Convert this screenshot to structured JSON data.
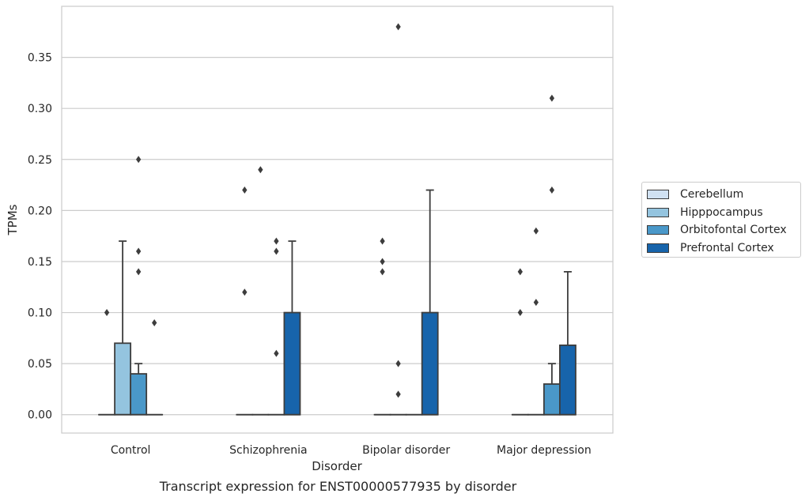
{
  "caption": "Transcript expression for ENST00000577935 by disorder",
  "chart_data": {
    "type": "box",
    "xlabel": "Disorder",
    "ylabel": "TPMs",
    "ylim": [
      -0.018,
      0.4
    ],
    "yticks": [
      "0.00",
      "0.05",
      "0.10",
      "0.15",
      "0.20",
      "0.25",
      "0.30",
      "0.35"
    ],
    "ytick_values": [
      0,
      0.05,
      0.1,
      0.15,
      0.2,
      0.25,
      0.3,
      0.35
    ],
    "grid": "horizontal",
    "legend_position": "right",
    "categories": [
      "Control",
      "Schizophrenia",
      "Bipolar disorder",
      "Major depression"
    ],
    "series": [
      {
        "name": "Cerebellum",
        "color": "#d0e1f2",
        "boxes": [
          {
            "q1": 0,
            "median": 0,
            "q3": 0,
            "whisker_low": 0,
            "whisker_high": 0,
            "outliers": [
              0.1
            ]
          },
          {
            "q1": 0,
            "median": 0,
            "q3": 0,
            "whisker_low": 0,
            "whisker_high": 0,
            "outliers": [
              0.12,
              0.22
            ]
          },
          {
            "q1": 0,
            "median": 0,
            "q3": 0,
            "whisker_low": 0,
            "whisker_high": 0,
            "outliers": [
              0.14,
              0.15,
              0.17
            ]
          },
          {
            "q1": 0,
            "median": 0,
            "q3": 0,
            "whisker_low": 0,
            "whisker_high": 0,
            "outliers": [
              0.1,
              0.14
            ]
          }
        ]
      },
      {
        "name": "Hipppocampus",
        "color": "#94c4df",
        "boxes": [
          {
            "q1": 0,
            "median": 0,
            "q3": 0.07,
            "whisker_low": 0,
            "whisker_high": 0.17,
            "outliers": []
          },
          {
            "q1": 0,
            "median": 0,
            "q3": 0,
            "whisker_low": 0,
            "whisker_high": 0,
            "outliers": [
              0.24
            ]
          },
          {
            "q1": 0,
            "median": 0,
            "q3": 0,
            "whisker_low": 0,
            "whisker_high": 0,
            "outliers": [
              0.02,
              0.05,
              0.38
            ]
          },
          {
            "q1": 0,
            "median": 0,
            "q3": 0,
            "whisker_low": 0,
            "whisker_high": 0,
            "outliers": [
              0.11,
              0.18
            ]
          }
        ]
      },
      {
        "name": "Orbitofontal Cortex",
        "color": "#4a98c9",
        "boxes": [
          {
            "q1": 0,
            "median": 0,
            "q3": 0.04,
            "whisker_low": 0,
            "whisker_high": 0.05,
            "outliers": [
              0.14,
              0.16,
              0.25
            ]
          },
          {
            "q1": 0,
            "median": 0,
            "q3": 0,
            "whisker_low": 0,
            "whisker_high": 0,
            "outliers": [
              0.06,
              0.16,
              0.17
            ]
          },
          {
            "q1": 0,
            "median": 0,
            "q3": 0,
            "whisker_low": 0,
            "whisker_high": 0,
            "outliers": []
          },
          {
            "q1": 0,
            "median": 0,
            "q3": 0.03,
            "whisker_low": 0,
            "whisker_high": 0.05,
            "outliers": [
              0.22,
              0.31
            ]
          }
        ]
      },
      {
        "name": "Prefrontal Cortex",
        "color": "#1764ab",
        "boxes": [
          {
            "q1": 0,
            "median": 0,
            "q3": 0,
            "whisker_low": 0,
            "whisker_high": 0,
            "outliers": [
              0.09
            ]
          },
          {
            "q1": 0,
            "median": 0,
            "q3": 0.1,
            "whisker_low": 0,
            "whisker_high": 0.17,
            "outliers": []
          },
          {
            "q1": 0,
            "median": 0,
            "q3": 0.1,
            "whisker_low": 0,
            "whisker_high": 0.22,
            "outliers": []
          },
          {
            "q1": 0,
            "median": 0,
            "q3": 0.068,
            "whisker_low": 0,
            "whisker_high": 0.14,
            "outliers": []
          }
        ]
      }
    ]
  }
}
